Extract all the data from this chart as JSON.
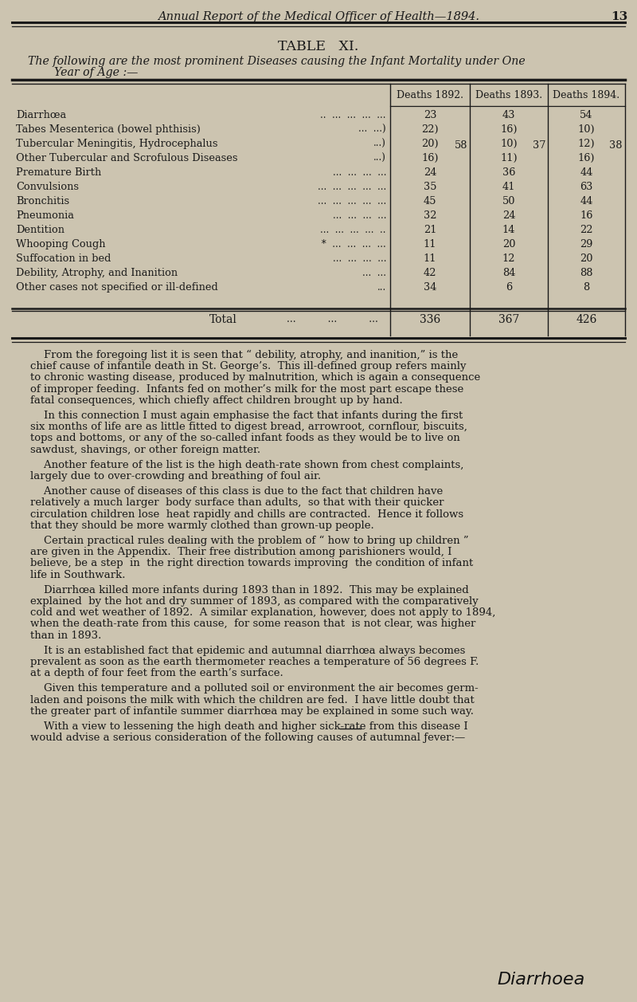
{
  "bg_color": "#ccc4b0",
  "text_color": "#1a1a1a",
  "page_header": "Annual Report of the Medical Officer of Health—1894.",
  "page_number": "13",
  "table_title": "TABLE   XI.",
  "table_subtitle_line1": "The following are the most prominent Diseases causing the Infant Mortality under One",
  "table_subtitle_line2": "Year of Age :—",
  "col_headers": [
    "Deaths 1892.",
    "Deaths 1893.",
    "Deaths 1894."
  ],
  "rows": [
    {
      "disease": "Diarrhœa",
      "dots": "..  ...  ...  ...  ...",
      "v1892": "23",
      "v1893": "43",
      "v1894": "54"
    },
    {
      "disease": "Tabes Mesenterica (bowel phthisis)",
      "dots": "...  ...)",
      "v1892": "22)",
      "v1893": "16)",
      "v1894": "10)"
    },
    {
      "disease": "Tubercular Meningitis, Hydrocephalus",
      "dots": "...)",
      "v1892": "20)",
      "v1893": "10)",
      "v1894": "12)"
    },
    {
      "disease": "Other Tubercular and Scrofulous Diseases",
      "dots": "...)",
      "v1892": "16)",
      "v1893": "11)",
      "v1894": "16)"
    },
    {
      "disease": "Premature Birth",
      "dots": "...  ...  ...  ...",
      "v1892": "24",
      "v1893": "36",
      "v1894": "44"
    },
    {
      "disease": "Convulsions",
      "dots": "...  ...  ...  ...  ...",
      "v1892": "35",
      "v1893": "41",
      "v1894": "63"
    },
    {
      "disease": "Bronchitis",
      "dots": "...  ...  ...  ...  ...",
      "v1892": "45",
      "v1893": "50",
      "v1894": "44"
    },
    {
      "disease": "Pneumonia",
      "dots": "...  ...  ...  ...",
      "v1892": "32",
      "v1893": "24",
      "v1894": "16"
    },
    {
      "disease": "Dentition",
      "dots": "...  ...  ...  ...  ..",
      "v1892": "21",
      "v1893": "14",
      "v1894": "22"
    },
    {
      "disease": "Whooping Cough",
      "dots": " *  ...  ...  ...  ...",
      "v1892": "11",
      "v1893": "20",
      "v1894": "29"
    },
    {
      "disease": "Suffocation in bed",
      "dots": "...  ...  ...  ...",
      "v1892": "11",
      "v1893": "12",
      "v1894": "20"
    },
    {
      "disease": "Debility, Atrophy, and Inanition",
      "dots": "...  ...",
      "v1892": "42",
      "v1893": "84",
      "v1894": "88"
    },
    {
      "disease": "Other cases not specified or ill-defined",
      "dots": "...",
      "v1892": "34",
      "v1893": "6",
      "v1894": "8"
    }
  ],
  "bracket_rows": [
    1,
    2,
    3
  ],
  "bracket_values": [
    "58",
    "37",
    "38"
  ],
  "total_label": "Total",
  "total_dots": "...          ...          ...",
  "totals": [
    "336",
    "367",
    "426"
  ],
  "paragraphs": [
    "    From the foregoing list it is seen that “ debility, atrophy, and inanition,” is the\nchief cause of infantile death in St. George’s.  This ill-defined group refers mainly\nto chronic wasting disease, produced by malnutrition, which is again a consequence\nof improper feeding.  Infants fed on mother’s milk for the most part escape these\nfatal consequences, which chiefly affect children brought up by hand.",
    "    In this connection I must again emphasise the fact that infants during the first\nsix months of life are as little fitted to digest bread, arrowroot, cornflour, biscuits,\ntops and bottoms, or any of the so-called infant foods as they would be to live on\nsawdust, shavings, or other foreign matter.",
    "    Another feature of the list is the high death-rate shown from chest complaints,\nlargely due to over-crowding and breathing of foul air.",
    "    Another cause of diseases of this class is due to the fact that children have\nrelatively a much larger  body surface than adults,  so that with their quicker\ncirculation children lose  heat rapidly and chills are contracted.  Hence it follows\nthat they should be more warmly clothed than grown-up people.",
    "    Certain practical rules dealing with the problem of “ how to bring up children ”\nare given in the Appendix.  Their free distribution among parishioners would, I\nbelieve, be a step  in  the right direction towards improving  the condition of infant\nlife in Southwark.",
    "    Diarrhœa killed more infants during 1893 than in 1892.  This may be explained\nexplained  by the hot and dry summer of 1893, as compared with the comparatively\ncold and wet weather of 1892.  A similar explanation, however, does not apply to 1894,\nwhen the death-rate from this cause,  for some reason that  is not clear, was higher\nthan in 1893.",
    "    It is an established fact that epidemic and autumnal diarrhœa always becomes\nprevalent as soon as the earth thermometer reaches a temperature of 56 degrees F.\nat a depth of four feet from the earth’s surface.",
    "    Given this temperature and a polluted soil or environment the air becomes germ-\nladen and poisons the milk with which the children are fed.  I have little doubt that\nthe greater part of infantile summer diarrhœa may be explained in some such way.",
    "    With a view to lessening the high death and higher sick-rate from this disease I\nwould advise a serious consideration of the following causes of autumnal ƒever:—"
  ],
  "handwriting": "Diarrhoea",
  "figwidth": 8.0,
  "figheight": 12.57,
  "dpi": 100
}
